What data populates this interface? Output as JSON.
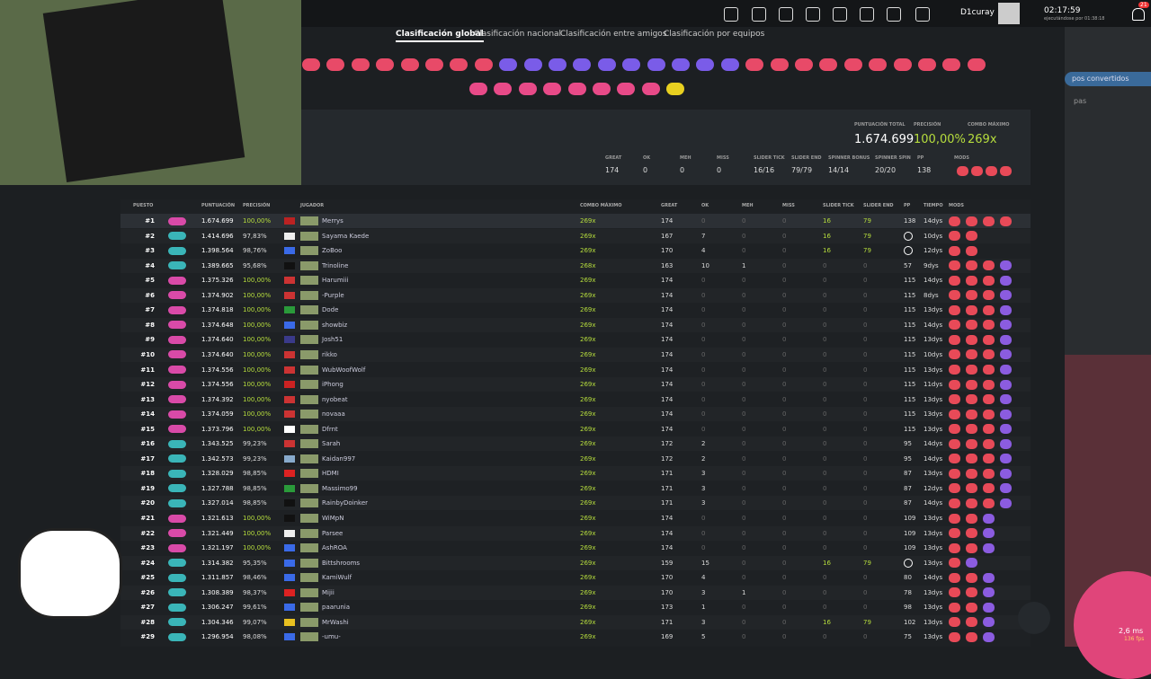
{
  "header": {
    "username": "D1curay",
    "clock": "02:17:59",
    "uptime": "ejecutándose por 01:38:18",
    "notifications": "21"
  },
  "tabs": [
    "Clasificación global",
    "Clasificación nacional",
    "Clasificación entre amigos",
    "Clasificación por equipos"
  ],
  "side": {
    "converted": "pos convertidos",
    "other": "pas"
  },
  "top_score": {
    "labels": [
      "PUNTUACIÓN TOTAL",
      "PRECISIÓN",
      "COMBO MÁXIMO"
    ],
    "values": [
      "1.674.699",
      "100,00%",
      "269x"
    ],
    "stats": [
      [
        "GREAT",
        "174"
      ],
      [
        "OK",
        "0"
      ],
      [
        "MEH",
        "0"
      ],
      [
        "MISS",
        "0"
      ],
      [
        "SLIDER TICK",
        "16/16"
      ],
      [
        "SLIDER END",
        "79/79"
      ],
      [
        "SPINNER BONUS",
        "14/14"
      ],
      [
        "SPINNER SPIN",
        "20/20"
      ],
      [
        "PP",
        "138"
      ]
    ],
    "mods_label": "MODS"
  },
  "table": {
    "columns": [
      "PUESTO",
      "PUNTUACIÓN",
      "PRECISIÓN",
      "JUGADOR",
      "COMBO MÁXIMO",
      "GREAT",
      "OK",
      "MEH",
      "MISS",
      "SLIDER TICK",
      "SLIDER END",
      "PP",
      "TIEMPO",
      "MODS"
    ],
    "rows": [
      [
        "#1",
        "1.674.699",
        "100,00%",
        "Merrys",
        "269x",
        "174",
        "0",
        "0",
        "0",
        "16",
        "79",
        "138",
        "14dys"
      ],
      [
        "#2",
        "1.414.696",
        "97,83%",
        "Sayama Kaede",
        "269x",
        "167",
        "7",
        "0",
        "0",
        "16",
        "79",
        null,
        "10dys"
      ],
      [
        "#3",
        "1.398.564",
        "98,76%",
        "ZoBoo",
        "269x",
        "170",
        "4",
        "0",
        "0",
        "16",
        "79",
        null,
        "12dys"
      ],
      [
        "#4",
        "1.389.665",
        "95,68%",
        "Trinoline",
        "268x",
        "163",
        "10",
        "1",
        "0",
        "0",
        "0",
        "57",
        "9dys"
      ],
      [
        "#5",
        "1.375.326",
        "100,00%",
        "Harumiii",
        "269x",
        "174",
        "0",
        "0",
        "0",
        "0",
        "0",
        "115",
        "14dys"
      ],
      [
        "#6",
        "1.374.902",
        "100,00%",
        "-Purple",
        "269x",
        "174",
        "0",
        "0",
        "0",
        "0",
        "0",
        "115",
        "8dys"
      ],
      [
        "#7",
        "1.374.818",
        "100,00%",
        "Dode",
        "269x",
        "174",
        "0",
        "0",
        "0",
        "0",
        "0",
        "115",
        "13dys"
      ],
      [
        "#8",
        "1.374.648",
        "100,00%",
        "showbiz",
        "269x",
        "174",
        "0",
        "0",
        "0",
        "0",
        "0",
        "115",
        "14dys"
      ],
      [
        "#9",
        "1.374.640",
        "100,00%",
        "Josh51",
        "269x",
        "174",
        "0",
        "0",
        "0",
        "0",
        "0",
        "115",
        "13dys"
      ],
      [
        "#10",
        "1.374.640",
        "100,00%",
        "rikko",
        "269x",
        "174",
        "0",
        "0",
        "0",
        "0",
        "0",
        "115",
        "10dys"
      ],
      [
        "#11",
        "1.374.556",
        "100,00%",
        "WubWoofWolf",
        "269x",
        "174",
        "0",
        "0",
        "0",
        "0",
        "0",
        "115",
        "13dys"
      ],
      [
        "#12",
        "1.374.556",
        "100,00%",
        "iPhong",
        "269x",
        "174",
        "0",
        "0",
        "0",
        "0",
        "0",
        "115",
        "11dys"
      ],
      [
        "#13",
        "1.374.392",
        "100,00%",
        "nyobeat",
        "269x",
        "174",
        "0",
        "0",
        "0",
        "0",
        "0",
        "115",
        "13dys"
      ],
      [
        "#14",
        "1.374.059",
        "100,00%",
        "novaaa",
        "269x",
        "174",
        "0",
        "0",
        "0",
        "0",
        "0",
        "115",
        "13dys"
      ],
      [
        "#15",
        "1.373.796",
        "100,00%",
        "Dfrnt",
        "269x",
        "174",
        "0",
        "0",
        "0",
        "0",
        "0",
        "115",
        "13dys"
      ],
      [
        "#16",
        "1.343.525",
        "99,23%",
        "Sarah",
        "269x",
        "172",
        "2",
        "0",
        "0",
        "0",
        "0",
        "95",
        "14dys"
      ],
      [
        "#17",
        "1.342.573",
        "99,23%",
        "Kaidan997",
        "269x",
        "172",
        "2",
        "0",
        "0",
        "0",
        "0",
        "95",
        "14dys"
      ],
      [
        "#18",
        "1.328.029",
        "98,85%",
        "HDMI",
        "269x",
        "171",
        "3",
        "0",
        "0",
        "0",
        "0",
        "87",
        "13dys"
      ],
      [
        "#19",
        "1.327.788",
        "98,85%",
        "Massimo99",
        "269x",
        "171",
        "3",
        "0",
        "0",
        "0",
        "0",
        "87",
        "12dys"
      ],
      [
        "#20",
        "1.327.014",
        "98,85%",
        "RainbyDoinker",
        "269x",
        "171",
        "3",
        "0",
        "0",
        "0",
        "0",
        "87",
        "14dys"
      ],
      [
        "#21",
        "1.321.613",
        "100,00%",
        "WiMpN",
        "269x",
        "174",
        "0",
        "0",
        "0",
        "0",
        "0",
        "109",
        "13dys"
      ],
      [
        "#22",
        "1.321.449",
        "100,00%",
        "Parsee",
        "269x",
        "174",
        "0",
        "0",
        "0",
        "0",
        "0",
        "109",
        "13dys"
      ],
      [
        "#23",
        "1.321.197",
        "100,00%",
        "AshROA",
        "269x",
        "174",
        "0",
        "0",
        "0",
        "0",
        "0",
        "109",
        "13dys"
      ],
      [
        "#24",
        "1.314.382",
        "95,35%",
        "Bittshrooms",
        "269x",
        "159",
        "15",
        "0",
        "0",
        "16",
        "79",
        null,
        "13dys"
      ],
      [
        "#25",
        "1.311.857",
        "98,46%",
        "KamiWulf",
        "269x",
        "170",
        "4",
        "0",
        "0",
        "0",
        "0",
        "80",
        "14dys"
      ],
      [
        "#26",
        "1.308.389",
        "98,37%",
        "Mijii",
        "269x",
        "170",
        "3",
        "1",
        "0",
        "0",
        "0",
        "78",
        "13dys"
      ],
      [
        "#27",
        "1.306.247",
        "99,61%",
        "paarunia",
        "269x",
        "173",
        "1",
        "0",
        "0",
        "0",
        "0",
        "98",
        "13dys"
      ],
      [
        "#28",
        "1.304.346",
        "99,07%",
        "MrWashi",
        "269x",
        "171",
        "3",
        "0",
        "0",
        "16",
        "79",
        "102",
        "13dys"
      ],
      [
        "#29",
        "1.296.954",
        "98,08%",
        "-umu-",
        "269x",
        "169",
        "5",
        "0",
        "0",
        "0",
        "0",
        "75",
        "13dys"
      ]
    ]
  },
  "overlay": {
    "latency": "2,6 ms",
    "fps": "136 fps"
  }
}
